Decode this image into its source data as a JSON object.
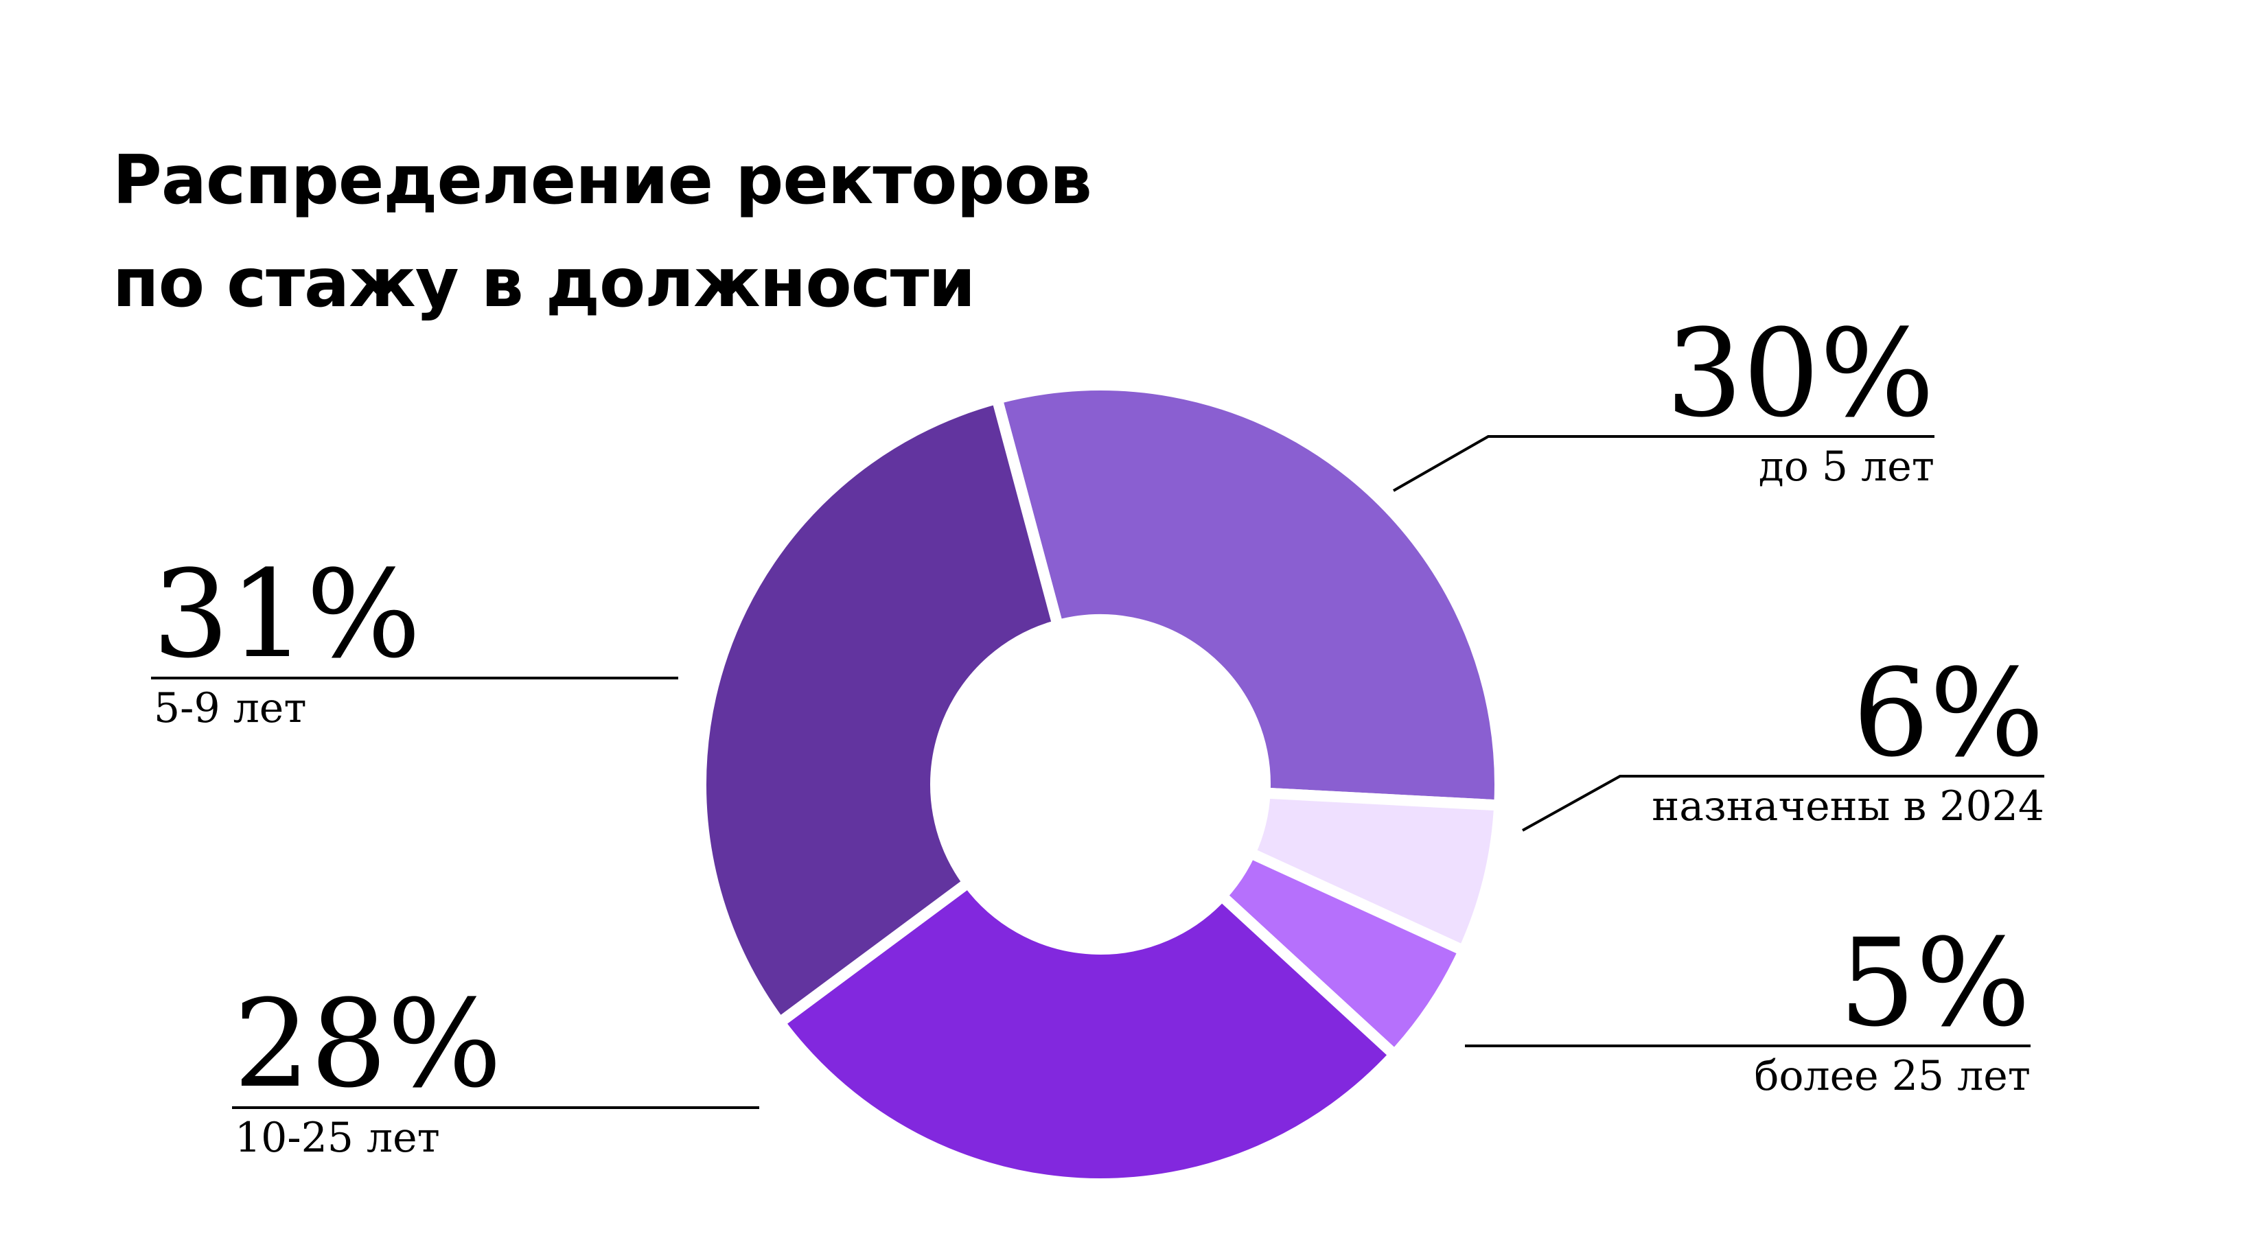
{
  "chart_data": {
    "type": "pie",
    "title_lines": [
      "Распределение ректоров",
      "по стажу в должности"
    ],
    "unit": "%",
    "slices": [
      {
        "label": "до 5 лет",
        "value": 30,
        "display": "30%",
        "color": "#8a5fd1"
      },
      {
        "label": "назначены в 2024",
        "value": 6,
        "display": "6%",
        "color": "#efe0ff"
      },
      {
        "label": "более 25 лет",
        "value": 5,
        "display": "5%",
        "color": "#b670fc"
      },
      {
        "label": "10-25 лет",
        "value": 28,
        "display": "28%",
        "color": "#8228de"
      },
      {
        "label": "5-9 лет",
        "value": 31,
        "display": "31%",
        "color": "#62349f"
      }
    ]
  }
}
